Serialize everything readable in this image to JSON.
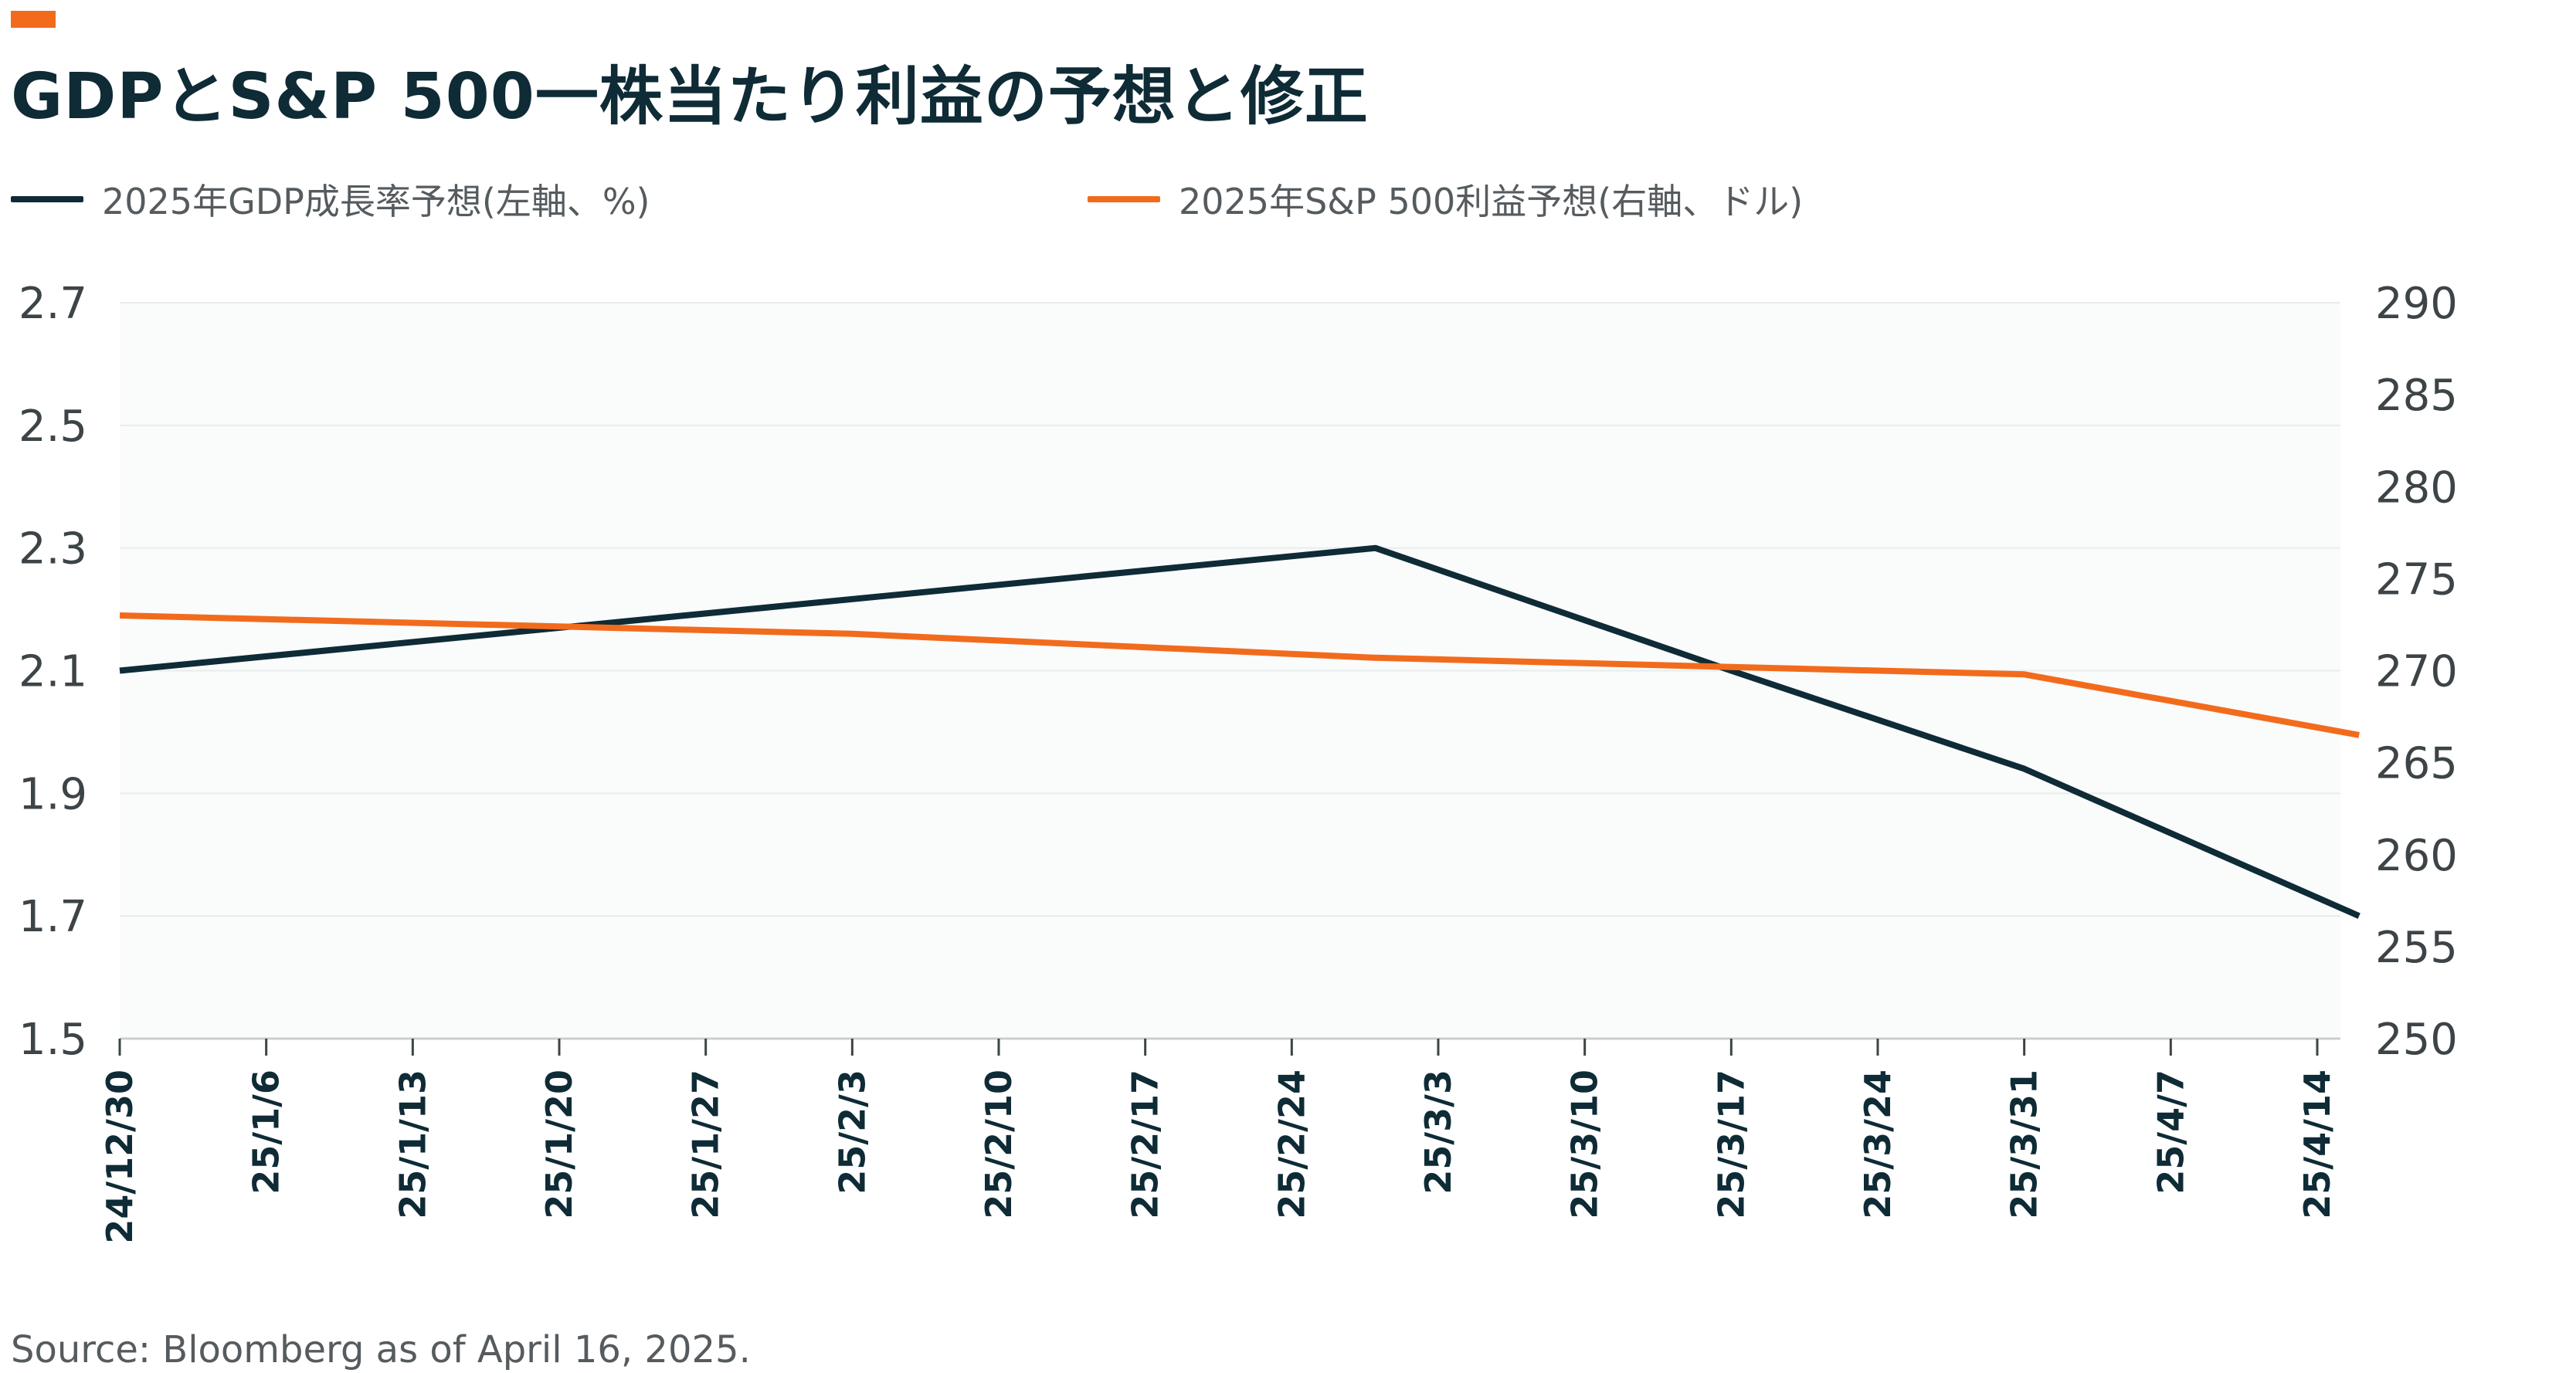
{
  "title": "GDPとS&P 500一株当たり利益の予想と修正",
  "source": "Source: Bloomberg as of April 16, 2025.",
  "colors": {
    "accent": "#f26b1d",
    "title": "#0e2b36",
    "gdp_line": "#0e2b36",
    "eps_line": "#f26b1d",
    "plot_bg": "#fafbfb",
    "grid": "#e9ecec"
  },
  "chart_data": {
    "type": "line",
    "x": [
      "24/12/30",
      "25/1/6",
      "25/1/13",
      "25/1/20",
      "25/1/27",
      "25/2/3",
      "25/2/10",
      "25/2/17",
      "25/2/24",
      "25/3/3",
      "25/3/10",
      "25/3/17",
      "25/3/24",
      "25/3/31",
      "25/4/7",
      "25/4/14"
    ],
    "series": [
      {
        "name": "2025年GDP成長率予想(左軸、%)",
        "axis": "left",
        "points": [
          {
            "x": "2024-12-30",
            "y": 2.1
          },
          {
            "x": "2025-02-28",
            "y": 2.3
          },
          {
            "x": "2025-03-17",
            "y": 2.1
          },
          {
            "x": "2025-03-31",
            "y": 1.94
          },
          {
            "x": "2025-04-16",
            "y": 1.7
          }
        ]
      },
      {
        "name": "2025年S&P 500利益予想(右軸、ドル)",
        "axis": "right",
        "points": [
          {
            "x": "2024-12-30",
            "y": 273.0
          },
          {
            "x": "2025-02-03",
            "y": 272.0
          },
          {
            "x": "2025-02-28",
            "y": 270.7
          },
          {
            "x": "2025-03-17",
            "y": 270.2
          },
          {
            "x": "2025-03-31",
            "y": 269.8
          },
          {
            "x": "2025-04-16",
            "y": 266.5
          }
        ]
      }
    ],
    "y_left": {
      "min": 1.5,
      "max": 2.7,
      "ticks": [
        "2.7",
        "2.5",
        "2.3",
        "2.1",
        "1.9",
        "1.7",
        "1.5"
      ]
    },
    "y_right": {
      "min": 250,
      "max": 290,
      "ticks": [
        "290",
        "285",
        "280",
        "275",
        "270",
        "265",
        "260",
        "255",
        "250"
      ]
    },
    "grid": true,
    "legend_position": "top"
  }
}
